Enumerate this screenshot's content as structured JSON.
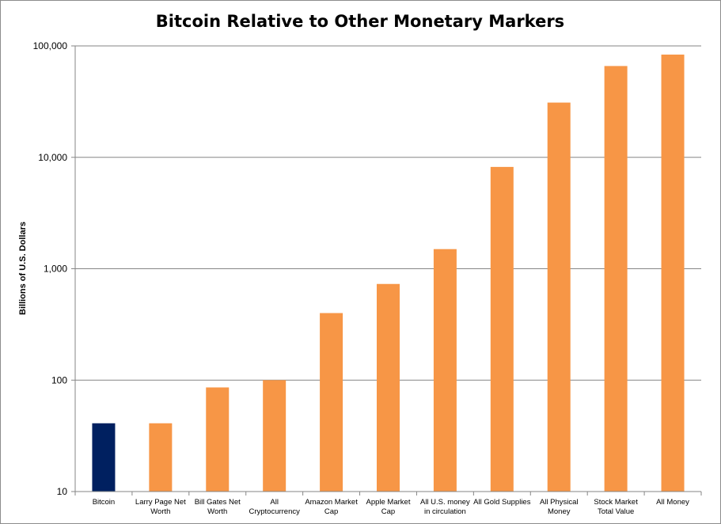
{
  "chart_data": {
    "type": "bar",
    "title": "Bitcoin Relative to Other Monetary Markers",
    "xlabel": "",
    "ylabel": "Billions of U.S. Dollars",
    "yscale": "log",
    "ylim": [
      10,
      100000
    ],
    "yticks": [
      10,
      100,
      1000,
      10000,
      100000
    ],
    "ytick_labels": [
      "10",
      "100",
      "1,000",
      "10,000",
      "100,000"
    ],
    "grid": "horizontal",
    "legend": "none",
    "categories": [
      [
        "Bitcoin"
      ],
      [
        "Larry Page Net",
        "Worth"
      ],
      [
        "Bill Gates Net",
        "Worth"
      ],
      [
        "All",
        "Cryptocurrency"
      ],
      [
        "Amazon Market",
        "Cap"
      ],
      [
        "Apple Market",
        "Cap"
      ],
      [
        "All U.S. money",
        "in circulation"
      ],
      [
        "All Gold Supplies"
      ],
      [
        "All Physical",
        "Money"
      ],
      [
        "Stock Market",
        "Total Value"
      ],
      [
        "All Money"
      ]
    ],
    "values": [
      41,
      41,
      86,
      100,
      400,
      730,
      1500,
      8200,
      31000,
      66000,
      83600
    ],
    "colors": [
      "#002060",
      "#F79646",
      "#F79646",
      "#F79646",
      "#F79646",
      "#F79646",
      "#F79646",
      "#F79646",
      "#F79646",
      "#F79646",
      "#F79646"
    ]
  },
  "style": {
    "gridline_color": "#868686",
    "axis_color": "#868686"
  }
}
